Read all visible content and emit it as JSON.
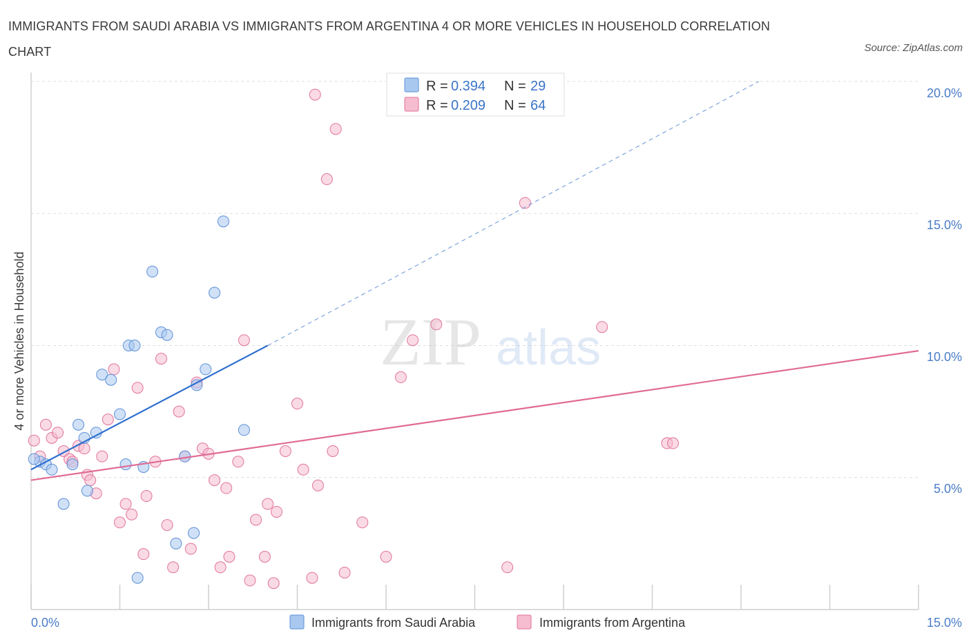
{
  "title": "IMMIGRANTS FROM SAUDI ARABIA VS IMMIGRANTS FROM ARGENTINA 4 OR MORE VEHICLES IN HOUSEHOLD CORRELATION CHART",
  "source": "Source: ZipAtlas.com",
  "watermark": {
    "zip": "ZIP",
    "atlas": "atlas"
  },
  "chart_data": {
    "type": "scatter",
    "title": "IMMIGRANTS FROM SAUDI ARABIA VS IMMIGRANTS FROM ARGENTINA 4 OR MORE VEHICLES IN HOUSEHOLD CORRELATION CHART",
    "xlabel": "",
    "ylabel": "4 or more Vehicles in Household",
    "xlim": [
      0,
      15
    ],
    "ylim": [
      0,
      20
    ],
    "x_tick_labels": [
      "0.0%",
      "15.0%"
    ],
    "y_ticks": [
      5,
      10,
      15,
      20
    ],
    "y_tick_labels": [
      "5.0%",
      "10.0%",
      "15.0%",
      "20.0%"
    ],
    "legend": [
      {
        "r_label": "R = ",
        "r": "0.394",
        "n_label": "N = ",
        "n": "29",
        "color": "#a9c8f0",
        "edge": "#5b8fd6"
      },
      {
        "r_label": "R = ",
        "r": "0.209",
        "n_label": "N = ",
        "n": "64",
        "color": "#f6bcd0",
        "edge": "#e0739a"
      }
    ],
    "series": [
      {
        "name": "Immigrants from Saudi Arabia",
        "color": "#a9c8f0",
        "edge": "#5b8fd6",
        "line_color": "#2f6fcf",
        "trend": {
          "x0": 0,
          "y0": 5.3,
          "x1": 4.0,
          "y1": 10.0,
          "dash_to_x": 12.3,
          "dash_to_y": 20.0
        },
        "points": [
          [
            0.15,
            5.6
          ],
          [
            0.25,
            5.5
          ],
          [
            0.35,
            5.3
          ],
          [
            0.55,
            4.0
          ],
          [
            0.7,
            5.5
          ],
          [
            0.8,
            7.0
          ],
          [
            0.9,
            6.5
          ],
          [
            0.95,
            4.5
          ],
          [
            1.1,
            6.7
          ],
          [
            1.2,
            8.9
          ],
          [
            1.35,
            8.7
          ],
          [
            1.5,
            7.4
          ],
          [
            1.6,
            5.5
          ],
          [
            1.65,
            10.0
          ],
          [
            1.75,
            10.0
          ],
          [
            1.8,
            1.2
          ],
          [
            1.9,
            5.4
          ],
          [
            2.05,
            12.8
          ],
          [
            2.2,
            10.5
          ],
          [
            2.3,
            10.4
          ],
          [
            2.45,
            2.5
          ],
          [
            2.6,
            5.8
          ],
          [
            2.75,
            2.9
          ],
          [
            2.8,
            8.5
          ],
          [
            2.95,
            9.1
          ],
          [
            3.1,
            12.0
          ],
          [
            3.25,
            14.7
          ],
          [
            3.6,
            6.8
          ],
          [
            0.05,
            5.7
          ]
        ]
      },
      {
        "name": "Immigrants from Argentina",
        "color": "#f6bcd0",
        "edge": "#e0739a",
        "line_color": "#e06a94",
        "trend": {
          "x0": 0,
          "y0": 4.9,
          "x1": 15,
          "y1": 9.8
        },
        "points": [
          [
            0.05,
            6.4
          ],
          [
            0.15,
            5.8
          ],
          [
            0.25,
            7.0
          ],
          [
            0.35,
            6.5
          ],
          [
            0.45,
            6.7
          ],
          [
            0.55,
            6.0
          ],
          [
            0.65,
            5.7
          ],
          [
            0.7,
            5.6
          ],
          [
            0.8,
            6.2
          ],
          [
            0.9,
            6.1
          ],
          [
            0.95,
            5.1
          ],
          [
            1.0,
            4.9
          ],
          [
            1.1,
            4.4
          ],
          [
            1.2,
            5.8
          ],
          [
            1.3,
            7.2
          ],
          [
            1.4,
            9.1
          ],
          [
            1.5,
            3.3
          ],
          [
            1.6,
            4.0
          ],
          [
            1.7,
            3.6
          ],
          [
            1.8,
            8.4
          ],
          [
            1.9,
            2.1
          ],
          [
            1.95,
            4.3
          ],
          [
            2.1,
            5.6
          ],
          [
            2.2,
            9.5
          ],
          [
            2.3,
            3.2
          ],
          [
            2.4,
            1.6
          ],
          [
            2.5,
            7.5
          ],
          [
            2.6,
            5.8
          ],
          [
            2.7,
            2.3
          ],
          [
            2.8,
            8.6
          ],
          [
            2.9,
            6.1
          ],
          [
            3.0,
            5.9
          ],
          [
            3.1,
            4.9
          ],
          [
            3.2,
            1.6
          ],
          [
            3.3,
            4.6
          ],
          [
            3.35,
            2.0
          ],
          [
            3.5,
            5.6
          ],
          [
            3.6,
            10.2
          ],
          [
            3.7,
            1.1
          ],
          [
            3.8,
            3.4
          ],
          [
            3.95,
            2.0
          ],
          [
            4.0,
            4.0
          ],
          [
            4.1,
            1.0
          ],
          [
            4.15,
            3.7
          ],
          [
            4.3,
            6.0
          ],
          [
            4.5,
            7.8
          ],
          [
            4.6,
            5.3
          ],
          [
            4.75,
            1.2
          ],
          [
            4.85,
            4.7
          ],
          [
            4.8,
            19.5
          ],
          [
            5.0,
            16.3
          ],
          [
            5.1,
            6.0
          ],
          [
            5.15,
            18.2
          ],
          [
            5.3,
            1.4
          ],
          [
            5.6,
            3.3
          ],
          [
            6.0,
            2.0
          ],
          [
            6.25,
            8.8
          ],
          [
            6.45,
            10.2
          ],
          [
            6.85,
            10.8
          ],
          [
            8.05,
            1.6
          ],
          [
            8.35,
            15.4
          ],
          [
            9.65,
            10.7
          ],
          [
            10.75,
            6.3
          ],
          [
            10.85,
            6.3
          ]
        ]
      }
    ]
  }
}
